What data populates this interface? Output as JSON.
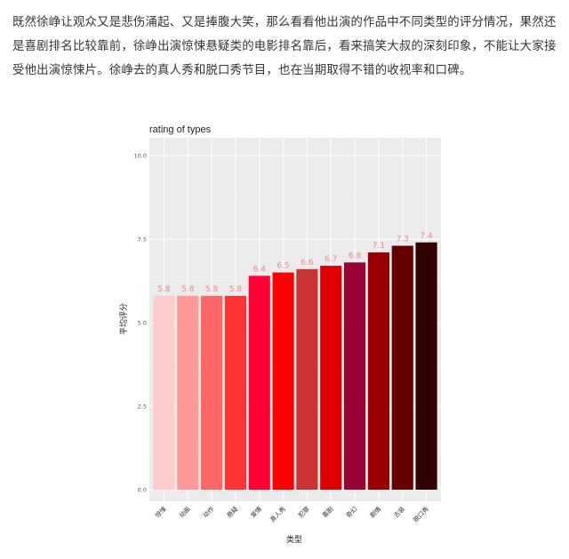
{
  "article": {
    "paragraph": "既然徐峥让观众又是悲伤涌起、又是捧腹大笑，那么看看他出演的作品中不同类型的评分情况，果然还是喜剧排名比较靠前，徐峥出演惊悚悬疑类的电影排名靠后，看来搞笑大叔的深刻印象，不能让大家接受他出演惊悚片。徐峥去的真人秀和脱口秀节目，也在当期取得不错的收视率和口碑。"
  },
  "chart_data": {
    "type": "bar",
    "title": "rating of types",
    "xlabel": "类型",
    "ylabel": "平均评分",
    "ylim": [
      0,
      10.5
    ],
    "yticks": [
      "0.0",
      "2.5",
      "5.0",
      "7.5",
      "10.0"
    ],
    "ytick_values": [
      0,
      2.5,
      5,
      7.5,
      10
    ],
    "grid": true,
    "categories": [
      "惊悚",
      "动画",
      "动作",
      "悬疑",
      "爱情",
      "真人秀",
      "犯罪",
      "喜剧",
      "奇幻",
      "剧情",
      "古装",
      "脱口秀"
    ],
    "values": [
      5.8,
      5.8,
      5.8,
      5.8,
      6.4,
      6.5,
      6.6,
      6.7,
      6.8,
      7.1,
      7.3,
      7.4
    ],
    "data_labels": [
      "5.8",
      "5.8",
      "5.8",
      "5.8",
      "6.4",
      "6.5",
      "6.6",
      "6.7",
      "6.8",
      "7.1",
      "7.3",
      "7.4"
    ],
    "colors": [
      "#ffcccc",
      "#ff9999",
      "#ff6666",
      "#ff3333",
      "#ff0033",
      "#ff0000",
      "#cc3333",
      "#dd0000",
      "#990033",
      "#990000",
      "#660000",
      "#330000"
    ],
    "panel_background": "#ebebeb"
  }
}
